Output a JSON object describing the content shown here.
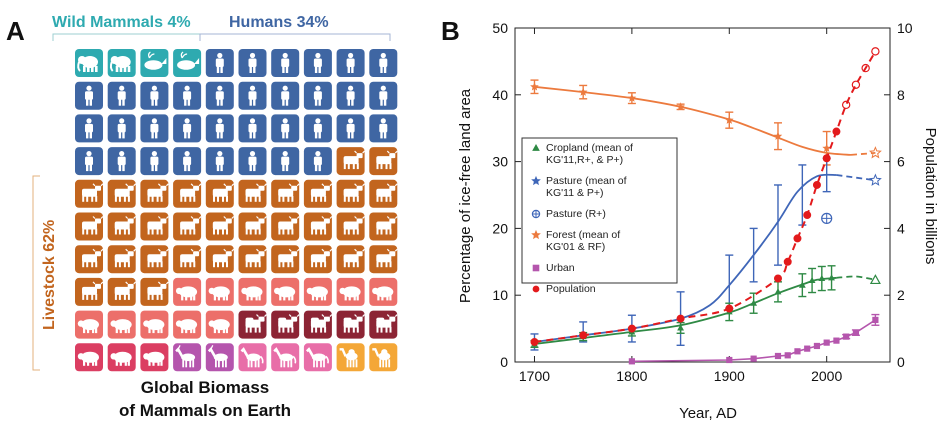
{
  "panel_a": {
    "letter": "A",
    "label_wild": "Wild Mammals 4%",
    "label_humans": "Humans 34%",
    "label_livestock": "Livestock 62%",
    "title_line1": "Global Biomass",
    "title_line2": "of Mammals on Earth",
    "colors": {
      "wild": "#2eaab0",
      "humans": "#3f66a3",
      "cattle": "#c2651e",
      "pigs": "#ec6f6a",
      "buffalo": "#8c2434",
      "sheep": "#db3e62",
      "goats": "#b555ad",
      "horses": "#e86ea8",
      "camels": "#f4a737"
    },
    "rows": [
      [
        "elephant",
        "elephant",
        "whale",
        "whale",
        "human",
        "human",
        "human",
        "human",
        "human",
        "human"
      ],
      [
        "human",
        "human",
        "human",
        "human",
        "human",
        "human",
        "human",
        "human",
        "human",
        "human"
      ],
      [
        "human",
        "human",
        "human",
        "human",
        "human",
        "human",
        "human",
        "human",
        "human",
        "human"
      ],
      [
        "human",
        "human",
        "human",
        "human",
        "human",
        "human",
        "human",
        "human",
        "cattle",
        "cattle"
      ],
      [
        "cattle",
        "cattle",
        "cattle",
        "cattle",
        "cattle",
        "cattle",
        "cattle",
        "cattle",
        "cattle",
        "cattle"
      ],
      [
        "cattle",
        "cattle",
        "cattle",
        "cattle",
        "cattle",
        "cattle",
        "cattle",
        "cattle",
        "cattle",
        "cattle"
      ],
      [
        "cattle",
        "cattle",
        "cattle",
        "cattle",
        "cattle",
        "cattle",
        "cattle",
        "cattle",
        "cattle",
        "cattle"
      ],
      [
        "cattle",
        "cattle",
        "cattle",
        "pig",
        "pig",
        "pig",
        "pig",
        "pig",
        "pig",
        "pig"
      ],
      [
        "pig",
        "pig",
        "pig",
        "pig",
        "pig",
        "buffalo",
        "buffalo",
        "buffalo",
        "buffalo",
        "buffalo"
      ],
      [
        "sheep",
        "sheep",
        "sheep",
        "goat",
        "goat",
        "horse",
        "horse",
        "horse",
        "camel",
        "camel"
      ]
    ]
  },
  "panel_b": {
    "letter": "B"
  },
  "chart_data": {
    "type": "line",
    "xlabel": "Year, AD",
    "ylabel": "Percentage of ice-free land area",
    "y2label": "Population in billions",
    "xlim": [
      1680,
      2065
    ],
    "ylim": [
      0,
      50
    ],
    "y2lim": [
      0,
      10
    ],
    "xticks": [
      1700,
      1800,
      1900,
      2000
    ],
    "yticks": [
      0,
      10,
      20,
      30,
      40,
      50
    ],
    "y2ticks": [
      0,
      2,
      4,
      6,
      8,
      10
    ],
    "legend_position": "left",
    "legend": [
      {
        "label_lines": [
          "Cropland (mean of",
          "KG'11,R+, & P+)"
        ],
        "marker": "triangle",
        "color": "#2f8a45"
      },
      {
        "label_lines": [
          "Pasture (mean of",
          "KG'11 & P+)"
        ],
        "marker": "star",
        "color": "#3f66b8"
      },
      {
        "label_lines": [
          "Pasture (R+)"
        ],
        "marker": "circle-plus",
        "color": "#3f66b8"
      },
      {
        "label_lines": [
          "Forest (mean of",
          "KG'01 & RF)"
        ],
        "marker": "star",
        "color": "#ec7a3e"
      },
      {
        "label_lines": [
          "Urban"
        ],
        "marker": "square",
        "color": "#b556ad"
      },
      {
        "label_lines": [
          "Population"
        ],
        "marker": "dot",
        "color": "#e31a1c"
      }
    ],
    "series": [
      {
        "name": "Forest (mean of KG'01 & RF)",
        "color": "#ec7a3e",
        "x": [
          1700,
          1750,
          1800,
          1850,
          1900,
          1950,
          2000
        ],
        "y": [
          41.2,
          40.4,
          39.5,
          38.2,
          36.2,
          33.8,
          32.0
        ],
        "err": [
          1.0,
          1.0,
          0.8,
          0.4,
          1.2,
          2.0,
          2.5
        ],
        "curve": [
          [
            1700,
            41.2
          ],
          [
            1750,
            40.4
          ],
          [
            1800,
            39.5
          ],
          [
            1850,
            38.2
          ],
          [
            1900,
            36.3
          ],
          [
            1925,
            35.0
          ],
          [
            1950,
            33.6
          ],
          [
            1975,
            32.2
          ],
          [
            2000,
            31.3
          ],
          [
            2025,
            31.0
          ]
        ],
        "projection": [
          [
            2025,
            31.0
          ],
          [
            2050,
            31.3
          ]
        ],
        "projection_marker": [
          2050,
          31.3
        ]
      },
      {
        "name": "Pasture (mean of KG'11 & P+)",
        "color": "#3f66b8",
        "x": [
          1700,
          1750,
          1800,
          1850,
          1900,
          1925,
          1950,
          1975,
          2000
        ],
        "y": [
          3.0,
          4.5,
          5.0,
          6.5,
          12.0,
          16.0,
          20.5,
          25.0,
          28.0
        ],
        "err": [
          1.2,
          1.5,
          2.0,
          4.0,
          4.0,
          4.0,
          6.0,
          4.5,
          2.5
        ],
        "curve": [
          [
            1700,
            3.0
          ],
          [
            1750,
            4.0
          ],
          [
            1800,
            5.0
          ],
          [
            1850,
            6.5
          ],
          [
            1880,
            8.5
          ],
          [
            1900,
            11.5
          ],
          [
            1925,
            16.0
          ],
          [
            1950,
            21.0
          ],
          [
            1970,
            25.5
          ],
          [
            1990,
            27.8
          ],
          [
            2010,
            28.0
          ]
        ],
        "projection": [
          [
            2010,
            28.0
          ],
          [
            2050,
            27.2
          ]
        ],
        "projection_marker": [
          2050,
          27.2
        ]
      },
      {
        "name": "Pasture (R+)",
        "color": "#3f66b8",
        "points": [
          [
            2000,
            21.5
          ]
        ]
      },
      {
        "name": "Cropland (mean of KG'11,R+, & P+)",
        "color": "#2f8a45",
        "x": [
          1700,
          1750,
          1800,
          1850,
          1900,
          1925,
          1950,
          1975,
          1985,
          1995,
          2005
        ],
        "y": [
          2.7,
          3.8,
          4.5,
          5.1,
          7.5,
          8.8,
          10.5,
          11.5,
          12.2,
          12.5,
          12.6
        ],
        "err": [
          0.5,
          0.6,
          0.6,
          0.8,
          1.3,
          1.5,
          1.5,
          1.7,
          1.8,
          1.8,
          1.8
        ],
        "curve": [
          [
            1700,
            2.7
          ],
          [
            1750,
            3.6
          ],
          [
            1800,
            4.5
          ],
          [
            1850,
            5.5
          ],
          [
            1900,
            7.4
          ],
          [
            1925,
            8.8
          ],
          [
            1950,
            10.3
          ],
          [
            1975,
            11.6
          ],
          [
            1990,
            12.3
          ],
          [
            2010,
            12.6
          ]
        ],
        "projection": [
          [
            2010,
            12.6
          ],
          [
            2030,
            12.8
          ],
          [
            2050,
            12.3
          ]
        ],
        "projection_marker": [
          2050,
          12.3
        ]
      },
      {
        "name": "Urban",
        "color": "#b556ad",
        "x": [
          1800,
          1900,
          1925,
          1950,
          1960,
          1970,
          1980,
          1990,
          2000,
          2010,
          2020,
          2030,
          2050
        ],
        "y": [
          0.1,
          0.3,
          0.5,
          0.9,
          1.0,
          1.6,
          2.0,
          2.4,
          2.9,
          3.2,
          3.8,
          4.4,
          6.3
        ],
        "err": [
          0,
          0,
          0,
          0,
          0,
          0,
          0,
          0,
          0,
          0,
          0.3,
          0.4,
          0.8
        ]
      },
      {
        "name": "Population",
        "color": "#e31a1c",
        "axis": "y2",
        "x": [
          1700,
          1750,
          1800,
          1850,
          1900,
          1950,
          1960,
          1970,
          1980,
          1990,
          2000,
          2010
        ],
        "y": [
          0.6,
          0.8,
          1.0,
          1.3,
          1.6,
          2.5,
          3.0,
          3.7,
          4.4,
          5.3,
          6.1,
          6.9
        ],
        "projection_x": [
          2020,
          2030,
          2040,
          2050
        ],
        "projection_y": [
          7.7,
          8.3,
          8.8,
          9.3
        ]
      }
    ]
  }
}
